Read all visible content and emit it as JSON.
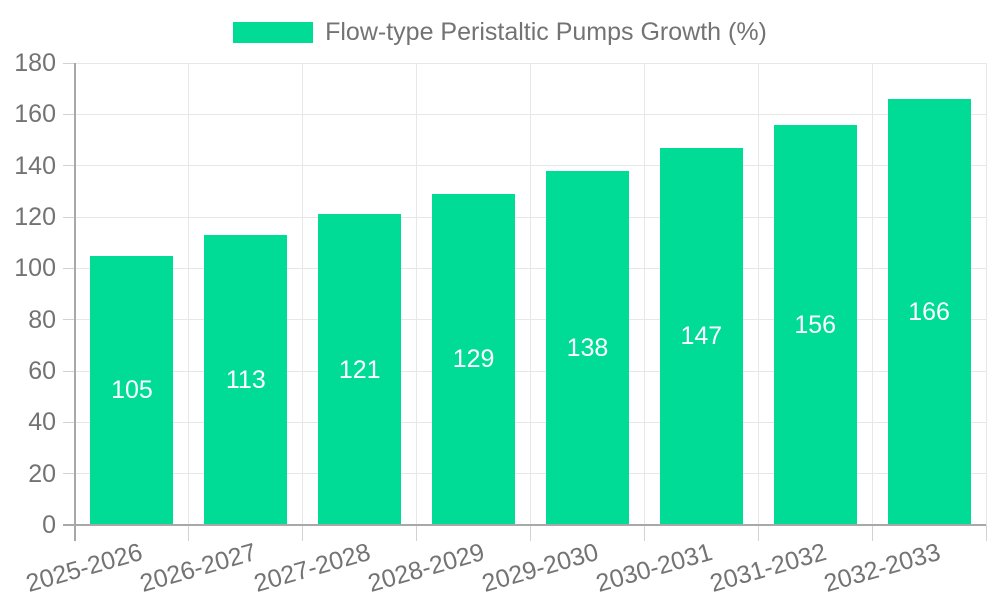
{
  "chart_data": {
    "type": "bar",
    "title": "",
    "legend_label": "Flow-type Peristaltic Pumps Growth (%)",
    "legend": [
      "Flow-type Peristaltic Pumps Growth (%)"
    ],
    "legend_position": "top",
    "categories": [
      "2025-2026",
      "2026-2027",
      "2027-2028",
      "2028-2029",
      "2029-2030",
      "2030-2031",
      "2031-2032",
      "2032-2033"
    ],
    "values": [
      105,
      113,
      121,
      129,
      138,
      147,
      156,
      166
    ],
    "xlabel": "",
    "ylabel": "",
    "ylim": [
      0,
      180
    ],
    "ytick_step": 20,
    "y_ticks": [
      0,
      20,
      40,
      60,
      80,
      100,
      120,
      140,
      160,
      180
    ],
    "grid": true,
    "x_tick_rotation_deg": -16,
    "bar_color": "#00dc96",
    "value_label_color": "#ffffff",
    "grid_color": "#e7e7e7",
    "axis_color": "#a8a8a8",
    "tick_label_color": "#737373"
  }
}
